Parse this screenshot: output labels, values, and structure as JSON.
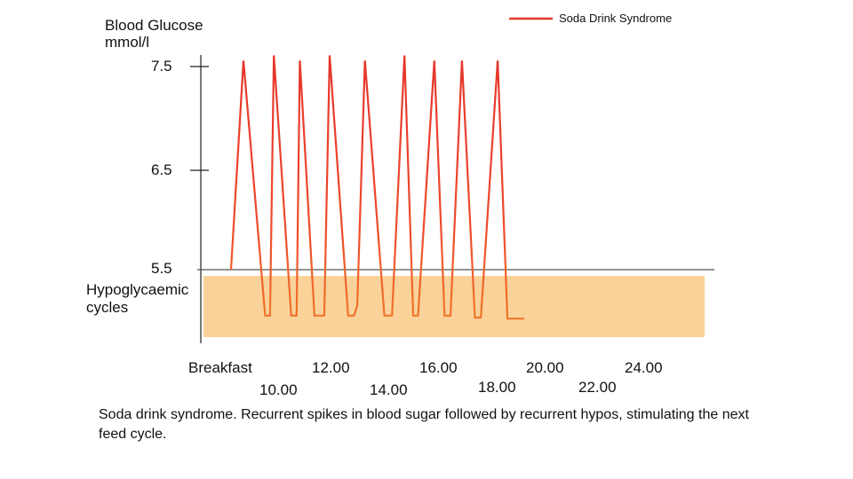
{
  "chart_data": {
    "type": "line",
    "ylabel": "Blood Glucose",
    "yunit": "mmol/l",
    "yticks": [
      "7.5",
      "6.5",
      "5.5"
    ],
    "ytick_values": [
      7.5,
      6.5,
      5.5
    ],
    "xticks": [
      "Breakfast",
      "10.00",
      "12.00",
      "14.00",
      "16.00",
      "18.00",
      "20.00",
      "22.00",
      "24.00"
    ],
    "band_label": "Hypoglycaemic cycles",
    "band_range": [
      4.8,
      5.45
    ],
    "grid": false,
    "legend_position": "top-right",
    "series": [
      {
        "name": "Soda Drink Syndrome",
        "color": "#e53a2c",
        "x": [
          0.0,
          0.23,
          0.63,
          0.72,
          0.79,
          1.11,
          1.21,
          1.27,
          1.54,
          1.72,
          1.82,
          2.16,
          2.27,
          2.33,
          2.47,
          2.83,
          2.97,
          3.2,
          3.36,
          3.45,
          3.75,
          3.94,
          4.05,
          4.26,
          4.5,
          4.61,
          4.92,
          5.1,
          5.22,
          5.41
        ],
        "y": [
          5.5,
          7.55,
          5.05,
          5.05,
          7.6,
          5.05,
          5.05,
          7.55,
          5.05,
          5.05,
          7.6,
          5.05,
          5.05,
          5.15,
          7.55,
          5.05,
          5.05,
          7.6,
          5.05,
          5.05,
          7.55,
          5.05,
          5.05,
          7.55,
          5.03,
          5.03,
          7.55,
          5.02,
          5.02,
          null
        ]
      }
    ]
  },
  "caption": "Soda drink syndrome. Recurrent spikes in blood sugar followed by recurrent hypos, stimulating the next feed cycle."
}
